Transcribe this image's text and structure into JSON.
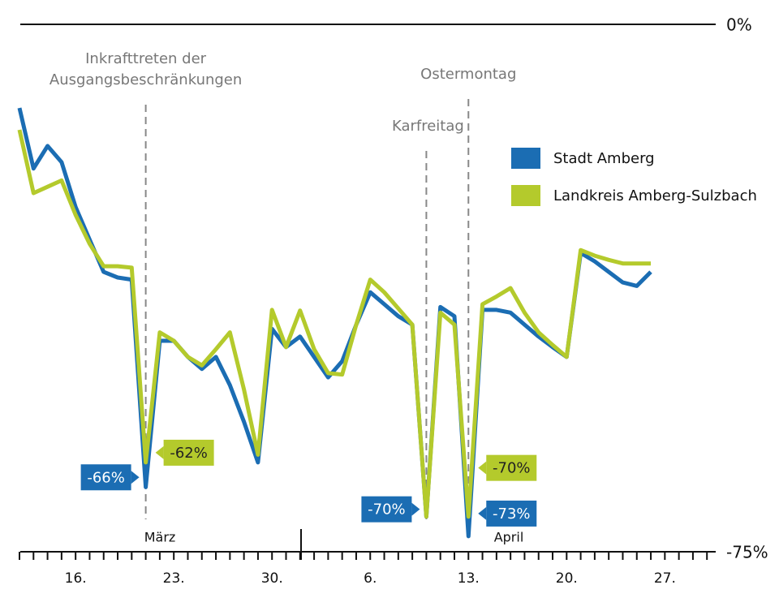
{
  "chart_data": {
    "type": "line",
    "categories": [
      null,
      null,
      null,
      null,
      "16.",
      null,
      null,
      null,
      null,
      null,
      null,
      "23.",
      null,
      null,
      null,
      null,
      null,
      null,
      "30.",
      null,
      null,
      null,
      null,
      null,
      null,
      "6.",
      null,
      null,
      null,
      null,
      null,
      null,
      "13.",
      null,
      null,
      null,
      null,
      null,
      null,
      "20.",
      null,
      null,
      null,
      null,
      null,
      null,
      "27.",
      null,
      null,
      null
    ],
    "ylim": [
      -75,
      0
    ],
    "yticks": [
      {
        "value": -75,
        "label": "-75%"
      },
      {
        "value": 0,
        "label": "0%"
      }
    ],
    "legend": "upper right",
    "months": [
      "März",
      "April"
    ],
    "annotations": [
      {
        "lines": [
          "Inkrafttreten der",
          "Ausgangsbeschränkungen"
        ],
        "at": 9
      },
      {
        "lines": [
          "Karfreitag"
        ],
        "at": 29
      },
      {
        "lines": [
          "Ostermontag"
        ],
        "at": 32
      }
    ],
    "series": [
      {
        "name": "Stadt Amberg",
        "color": "#1b6db3",
        "values": [
          -11.9,
          -20.5,
          -17.3,
          -19.6,
          -26,
          -30.6,
          -35.2,
          -36,
          -36.3,
          -65.8,
          -45,
          -45,
          -47.3,
          -49,
          -47.3,
          -51.3,
          -56.5,
          -62.3,
          -43.3,
          -45.9,
          -44.4,
          -47.3,
          -50.2,
          -47.9,
          -42.7,
          -38.1,
          -39.8,
          -41.5,
          -42.7,
          -70,
          -40.2,
          -41.5,
          -72.8,
          -40.6,
          -40.6,
          -41,
          -42.7,
          -44.4,
          -45.9,
          -47.3,
          -32.5,
          -33.7,
          -35.2,
          -36.7,
          -37.2,
          -35.2,
          null,
          null,
          null,
          null
        ],
        "value_labels": [
          null,
          null,
          null,
          null,
          null,
          null,
          null,
          null,
          null,
          "-66%",
          null,
          null,
          null,
          null,
          null,
          null,
          null,
          null,
          null,
          null,
          null,
          null,
          null,
          null,
          null,
          null,
          null,
          null,
          null,
          "-70%",
          null,
          null,
          "-73%",
          null,
          null,
          null,
          null,
          null,
          null,
          null,
          null,
          null,
          null,
          null,
          null,
          null,
          null,
          null,
          null,
          null
        ]
      },
      {
        "name": "Landkreis Amberg-Sulzbach",
        "color": "#b4ca2c",
        "values": [
          -15,
          -24,
          -23.1,
          -22.2,
          -27.1,
          -31.2,
          -34.4,
          -34.4,
          -34.6,
          -62.3,
          -43.8,
          -45,
          -47.3,
          -48.5,
          -46.2,
          -43.8,
          -51.9,
          -61.2,
          -40.6,
          -45.9,
          -40.7,
          -46.2,
          -49.6,
          -49.8,
          -42.7,
          -36.3,
          -38.1,
          -40.4,
          -42.7,
          -70,
          -41,
          -42.7,
          -70,
          -39.8,
          -38.7,
          -37.5,
          -41,
          -43.8,
          -45.6,
          -47.3,
          -32.1,
          -32.9,
          -33.5,
          -34,
          -34,
          -34,
          null,
          null,
          null,
          null
        ],
        "value_labels": [
          null,
          null,
          null,
          null,
          null,
          null,
          null,
          null,
          null,
          "-62%",
          null,
          null,
          null,
          null,
          null,
          null,
          null,
          null,
          null,
          null,
          null,
          null,
          null,
          null,
          null,
          null,
          null,
          null,
          null,
          null,
          null,
          null,
          "-70%",
          null,
          null,
          null,
          null,
          null,
          null,
          null,
          null,
          null,
          null,
          null,
          null,
          null,
          null,
          null,
          null,
          null
        ]
      }
    ]
  }
}
